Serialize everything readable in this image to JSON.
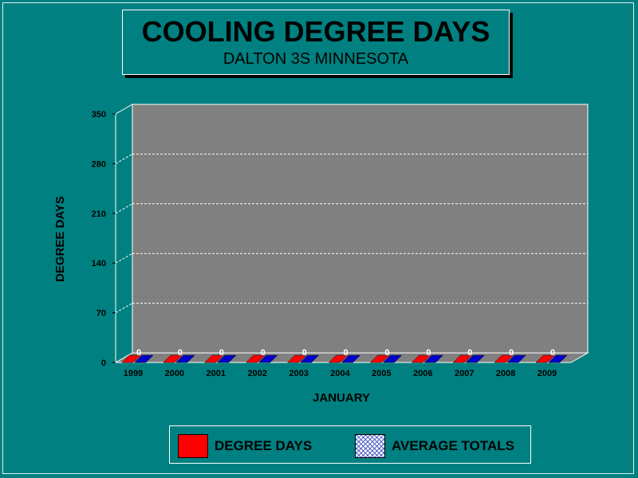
{
  "chart_data": {
    "type": "bar",
    "title": "COOLING DEGREE DAYS",
    "subtitle": "DALTON 3S MINNESOTA",
    "xlabel": "JANUARY",
    "ylabel": "DEGREE DAYS",
    "categories": [
      "1999",
      "2000",
      "2001",
      "2002",
      "2003",
      "2004",
      "2005",
      "2006",
      "2007",
      "2008",
      "2009"
    ],
    "series": [
      {
        "name": "DEGREE DAYS",
        "values": [
          0,
          0,
          0,
          0,
          0,
          0,
          0,
          0,
          0,
          0,
          0
        ],
        "color": "#ff0000"
      },
      {
        "name": "AVERAGE TOTALS",
        "values": [
          0,
          0,
          0,
          0,
          0,
          0,
          0,
          0,
          0,
          0,
          0
        ],
        "color": "#0000cc"
      }
    ],
    "data_labels": [
      "0",
      "0",
      "0",
      "0",
      "0",
      "0",
      "0",
      "0",
      "0",
      "0",
      "0"
    ],
    "ylim": [
      0,
      350
    ],
    "yticks": [
      "0",
      "70",
      "140",
      "210",
      "280",
      "350"
    ],
    "grid": true,
    "legend_position": "bottom",
    "colors": {
      "background": "#008080",
      "plot_area": "#808080",
      "grid": "#ffffff"
    }
  }
}
